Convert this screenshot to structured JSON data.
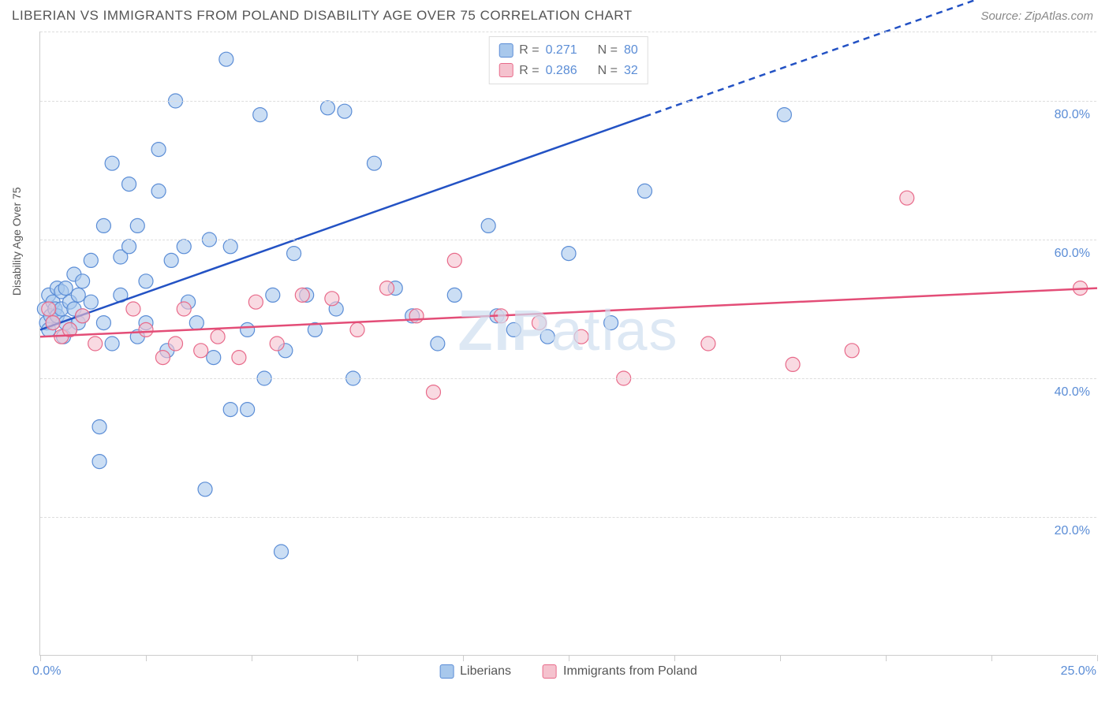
{
  "header": {
    "title": "LIBERIAN VS IMMIGRANTS FROM POLAND DISABILITY AGE OVER 75 CORRELATION CHART",
    "source": "Source: ZipAtlas.com"
  },
  "chart": {
    "type": "scatter",
    "x_axis_title": "",
    "y_axis_title": "Disability Age Over 75",
    "xlim": [
      0,
      25
    ],
    "ylim": [
      0,
      90
    ],
    "x_ticks": [
      0,
      2.5,
      5,
      7.5,
      10,
      12.5,
      15,
      17.5,
      20,
      22.5,
      25
    ],
    "x_labels_shown": {
      "min": "0.0%",
      "max": "25.0%"
    },
    "y_ticks": [
      20,
      40,
      60,
      80
    ],
    "y_label_format": "%.1f%%",
    "grid_color": "#dddddd",
    "axis_color": "#cccccc",
    "tick_label_color": "#5b8dd6",
    "background_color": "#ffffff",
    "watermark": {
      "text_bold": "ZIP",
      "text_light": "atlas",
      "color": "#d0dff0"
    },
    "series": [
      {
        "name": "Liberians",
        "fill_color": "#a8c8ec",
        "stroke_color": "#5b8dd6",
        "marker_opacity": 0.6,
        "marker_radius": 9,
        "trend_line_color": "#2352c4",
        "trend_line_width": 2.5,
        "trend_solid_xmax": 14.3,
        "trend": {
          "slope": 2.15,
          "intercept": 47
        },
        "points": [
          [
            0.1,
            50
          ],
          [
            0.15,
            48
          ],
          [
            0.2,
            52
          ],
          [
            0.2,
            47
          ],
          [
            0.25,
            49
          ],
          [
            0.3,
            51
          ],
          [
            0.3,
            48
          ],
          [
            0.35,
            50
          ],
          [
            0.4,
            53
          ],
          [
            0.4,
            49
          ],
          [
            0.5,
            52.5
          ],
          [
            0.5,
            50
          ],
          [
            0.55,
            46
          ],
          [
            0.6,
            53
          ],
          [
            0.6,
            48
          ],
          [
            0.7,
            51
          ],
          [
            0.7,
            47
          ],
          [
            0.8,
            55
          ],
          [
            0.8,
            50
          ],
          [
            0.9,
            52
          ],
          [
            0.9,
            48
          ],
          [
            1.0,
            54
          ],
          [
            1.0,
            49
          ],
          [
            1.2,
            57
          ],
          [
            1.2,
            51
          ],
          [
            1.4,
            28
          ],
          [
            1.4,
            33
          ],
          [
            1.5,
            62
          ],
          [
            1.5,
            48
          ],
          [
            1.7,
            71
          ],
          [
            1.7,
            45
          ],
          [
            1.9,
            57.5
          ],
          [
            1.9,
            52
          ],
          [
            2.1,
            68
          ],
          [
            2.1,
            59
          ],
          [
            2.3,
            62
          ],
          [
            2.3,
            46
          ],
          [
            2.5,
            54
          ],
          [
            2.5,
            48
          ],
          [
            2.8,
            73
          ],
          [
            2.8,
            67
          ],
          [
            3.0,
            44
          ],
          [
            3.1,
            57
          ],
          [
            3.2,
            80
          ],
          [
            3.4,
            59
          ],
          [
            3.5,
            51
          ],
          [
            3.7,
            48
          ],
          [
            3.9,
            24
          ],
          [
            4.0,
            60
          ],
          [
            4.1,
            43
          ],
          [
            4.4,
            86
          ],
          [
            4.5,
            35.5
          ],
          [
            4.5,
            59
          ],
          [
            4.9,
            35.5
          ],
          [
            4.9,
            47
          ],
          [
            5.2,
            78
          ],
          [
            5.3,
            40
          ],
          [
            5.5,
            52
          ],
          [
            5.7,
            15
          ],
          [
            5.8,
            44
          ],
          [
            6.0,
            58
          ],
          [
            6.3,
            52
          ],
          [
            6.5,
            47
          ],
          [
            6.8,
            79
          ],
          [
            7.0,
            50
          ],
          [
            7.2,
            78.5
          ],
          [
            7.4,
            40
          ],
          [
            7.9,
            71
          ],
          [
            8.4,
            53
          ],
          [
            8.8,
            49
          ],
          [
            9.4,
            45
          ],
          [
            9.8,
            52
          ],
          [
            10.6,
            62
          ],
          [
            10.8,
            49
          ],
          [
            11.2,
            47
          ],
          [
            12.0,
            46
          ],
          [
            12.5,
            58
          ],
          [
            13.5,
            48
          ],
          [
            14.3,
            67
          ],
          [
            17.6,
            78
          ]
        ]
      },
      {
        "name": "Immigrants from Poland",
        "fill_color": "#f5c2ce",
        "stroke_color": "#e86a8a",
        "marker_opacity": 0.6,
        "marker_radius": 9,
        "trend_line_color": "#e34d77",
        "trend_line_width": 2.5,
        "trend_solid_xmax": 25,
        "trend": {
          "slope": 0.28,
          "intercept": 46
        },
        "points": [
          [
            0.2,
            50
          ],
          [
            0.3,
            48
          ],
          [
            0.5,
            46
          ],
          [
            0.7,
            47
          ],
          [
            1.0,
            49
          ],
          [
            1.3,
            45
          ],
          [
            2.2,
            50
          ],
          [
            2.5,
            47
          ],
          [
            2.9,
            43
          ],
          [
            3.2,
            45
          ],
          [
            3.4,
            50
          ],
          [
            3.8,
            44
          ],
          [
            4.2,
            46
          ],
          [
            4.7,
            43
          ],
          [
            5.1,
            51
          ],
          [
            5.6,
            45
          ],
          [
            6.2,
            52
          ],
          [
            6.9,
            51.5
          ],
          [
            7.5,
            47
          ],
          [
            8.2,
            53
          ],
          [
            8.9,
            49
          ],
          [
            9.3,
            38
          ],
          [
            9.8,
            57
          ],
          [
            10.9,
            49
          ],
          [
            11.8,
            48
          ],
          [
            12.8,
            46
          ],
          [
            13.8,
            40
          ],
          [
            15.8,
            45
          ],
          [
            17.8,
            42
          ],
          [
            19.2,
            44
          ],
          [
            20.5,
            66
          ],
          [
            24.6,
            53
          ]
        ]
      }
    ],
    "legend_top": {
      "rows": [
        {
          "swatch_fill": "#a8c8ec",
          "swatch_stroke": "#5b8dd6",
          "r_label": "R =",
          "r_value": "0.271",
          "n_label": "N =",
          "n_value": "80"
        },
        {
          "swatch_fill": "#f5c2ce",
          "swatch_stroke": "#e86a8a",
          "r_label": "R =",
          "r_value": "0.286",
          "n_label": "N =",
          "n_value": "32"
        }
      ]
    },
    "legend_bottom": [
      {
        "swatch_fill": "#a8c8ec",
        "swatch_stroke": "#5b8dd6",
        "label": "Liberians"
      },
      {
        "swatch_fill": "#f5c2ce",
        "swatch_stroke": "#e86a8a",
        "label": "Immigrants from Poland"
      }
    ]
  }
}
